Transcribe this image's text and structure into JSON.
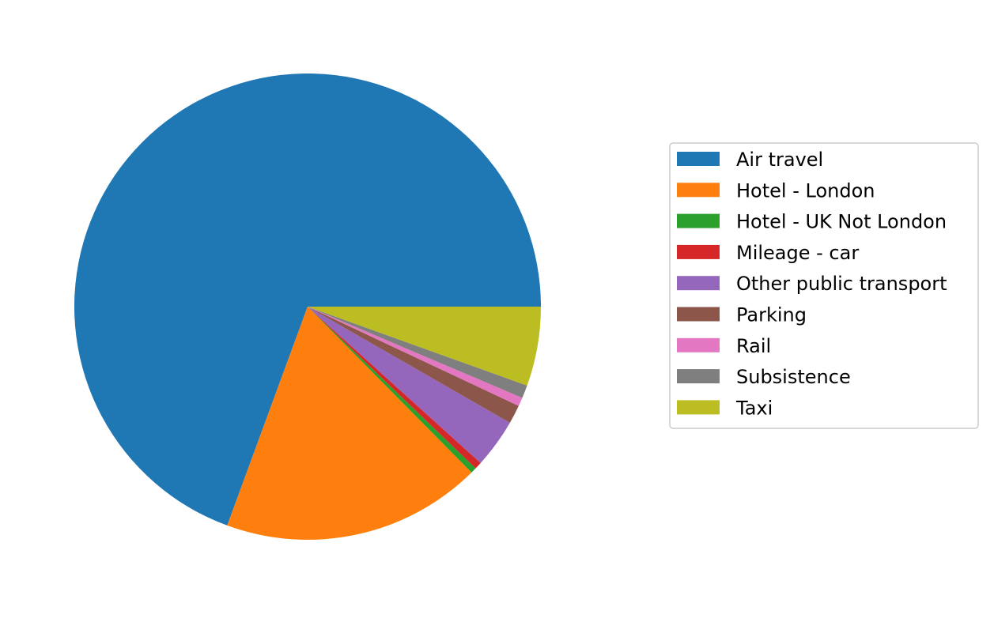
{
  "chart_data": {
    "type": "pie",
    "start_angle_deg": 0,
    "direction": "counterclockwise",
    "legend_placement": "center-right",
    "categories": [
      "Air travel",
      "Hotel - London",
      "Hotel - UK Not London",
      "Mileage - car",
      "Other public transport",
      "Parking",
      "Rail",
      "Subsistence",
      "Taxi"
    ],
    "values": [
      69.4,
      18.0,
      0.4,
      0.5,
      3.4,
      1.3,
      0.6,
      0.9,
      5.5
    ],
    "colors": [
      "#1f77b4",
      "#ff7f0e",
      "#2ca02c",
      "#d62728",
      "#9467bd",
      "#8c564b",
      "#e377c2",
      "#7f7f7f",
      "#bcbd22"
    ]
  }
}
